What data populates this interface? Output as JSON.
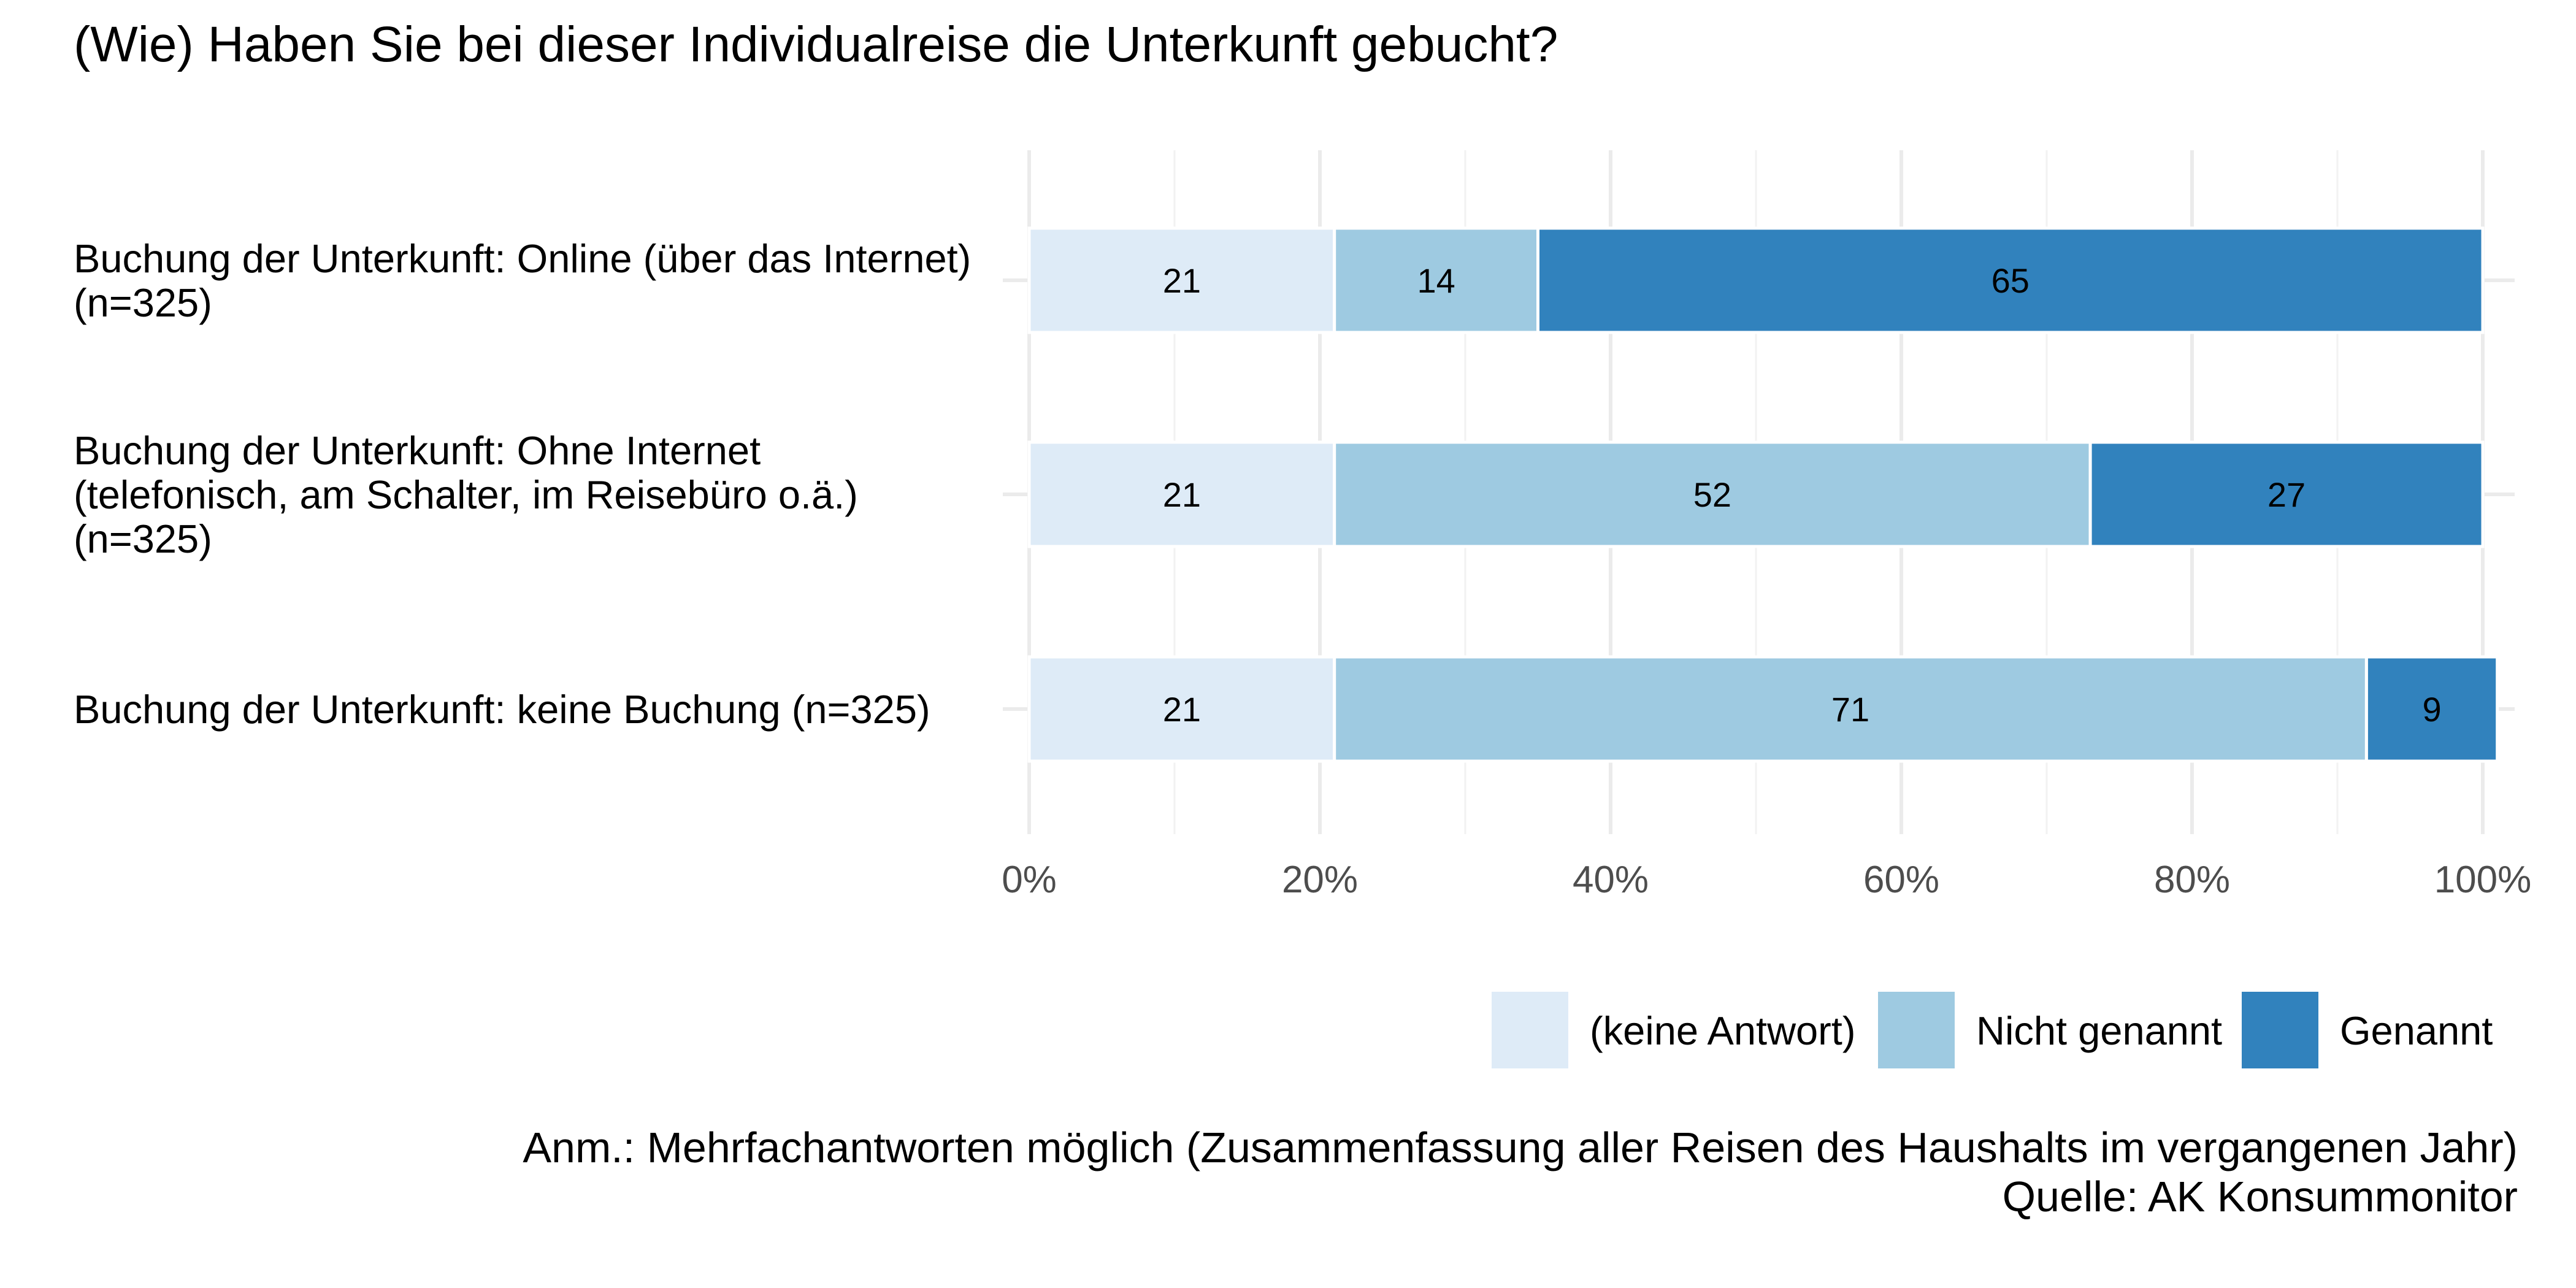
{
  "chart_data": {
    "type": "bar",
    "orientation": "horizontal",
    "stacked": true,
    "title": "(Wie) Haben Sie bei dieser Individualreise die Unterkunft gebucht?",
    "categories": [
      [
        "Buchung der Unterkunft: Online (über das Internet)",
        "(n=325)"
      ],
      [
        "Buchung der Unterkunft: Ohne Internet",
        "(telefonisch, am Schalter, im Reisebüro o.ä.)",
        "(n=325)"
      ],
      [
        "Buchung der Unterkunft: keine Buchung (n=325)"
      ]
    ],
    "series": [
      {
        "name": "(keine Antwort)",
        "color": "#deebf7",
        "values": [
          21,
          21,
          21
        ]
      },
      {
        "name": "Nicht genannt",
        "color": "#9ecae1",
        "values": [
          14,
          52,
          71
        ]
      },
      {
        "name": "Genannt",
        "color": "#3182bd",
        "values": [
          65,
          27,
          9
        ]
      }
    ],
    "xlim": [
      0,
      100
    ],
    "xticks": [
      0,
      20,
      40,
      60,
      80,
      100
    ],
    "xtick_labels": [
      "0%",
      "20%",
      "40%",
      "60%",
      "80%",
      "100%"
    ],
    "legend_position": "bottom-right",
    "grid": true
  },
  "caption": {
    "note": "Anm.: Mehrfachantworten möglich (Zusammenfassung aller Reisen des Haushalts im vergangenen Jahr)",
    "source": "Quelle: AK Konsummonitor"
  }
}
